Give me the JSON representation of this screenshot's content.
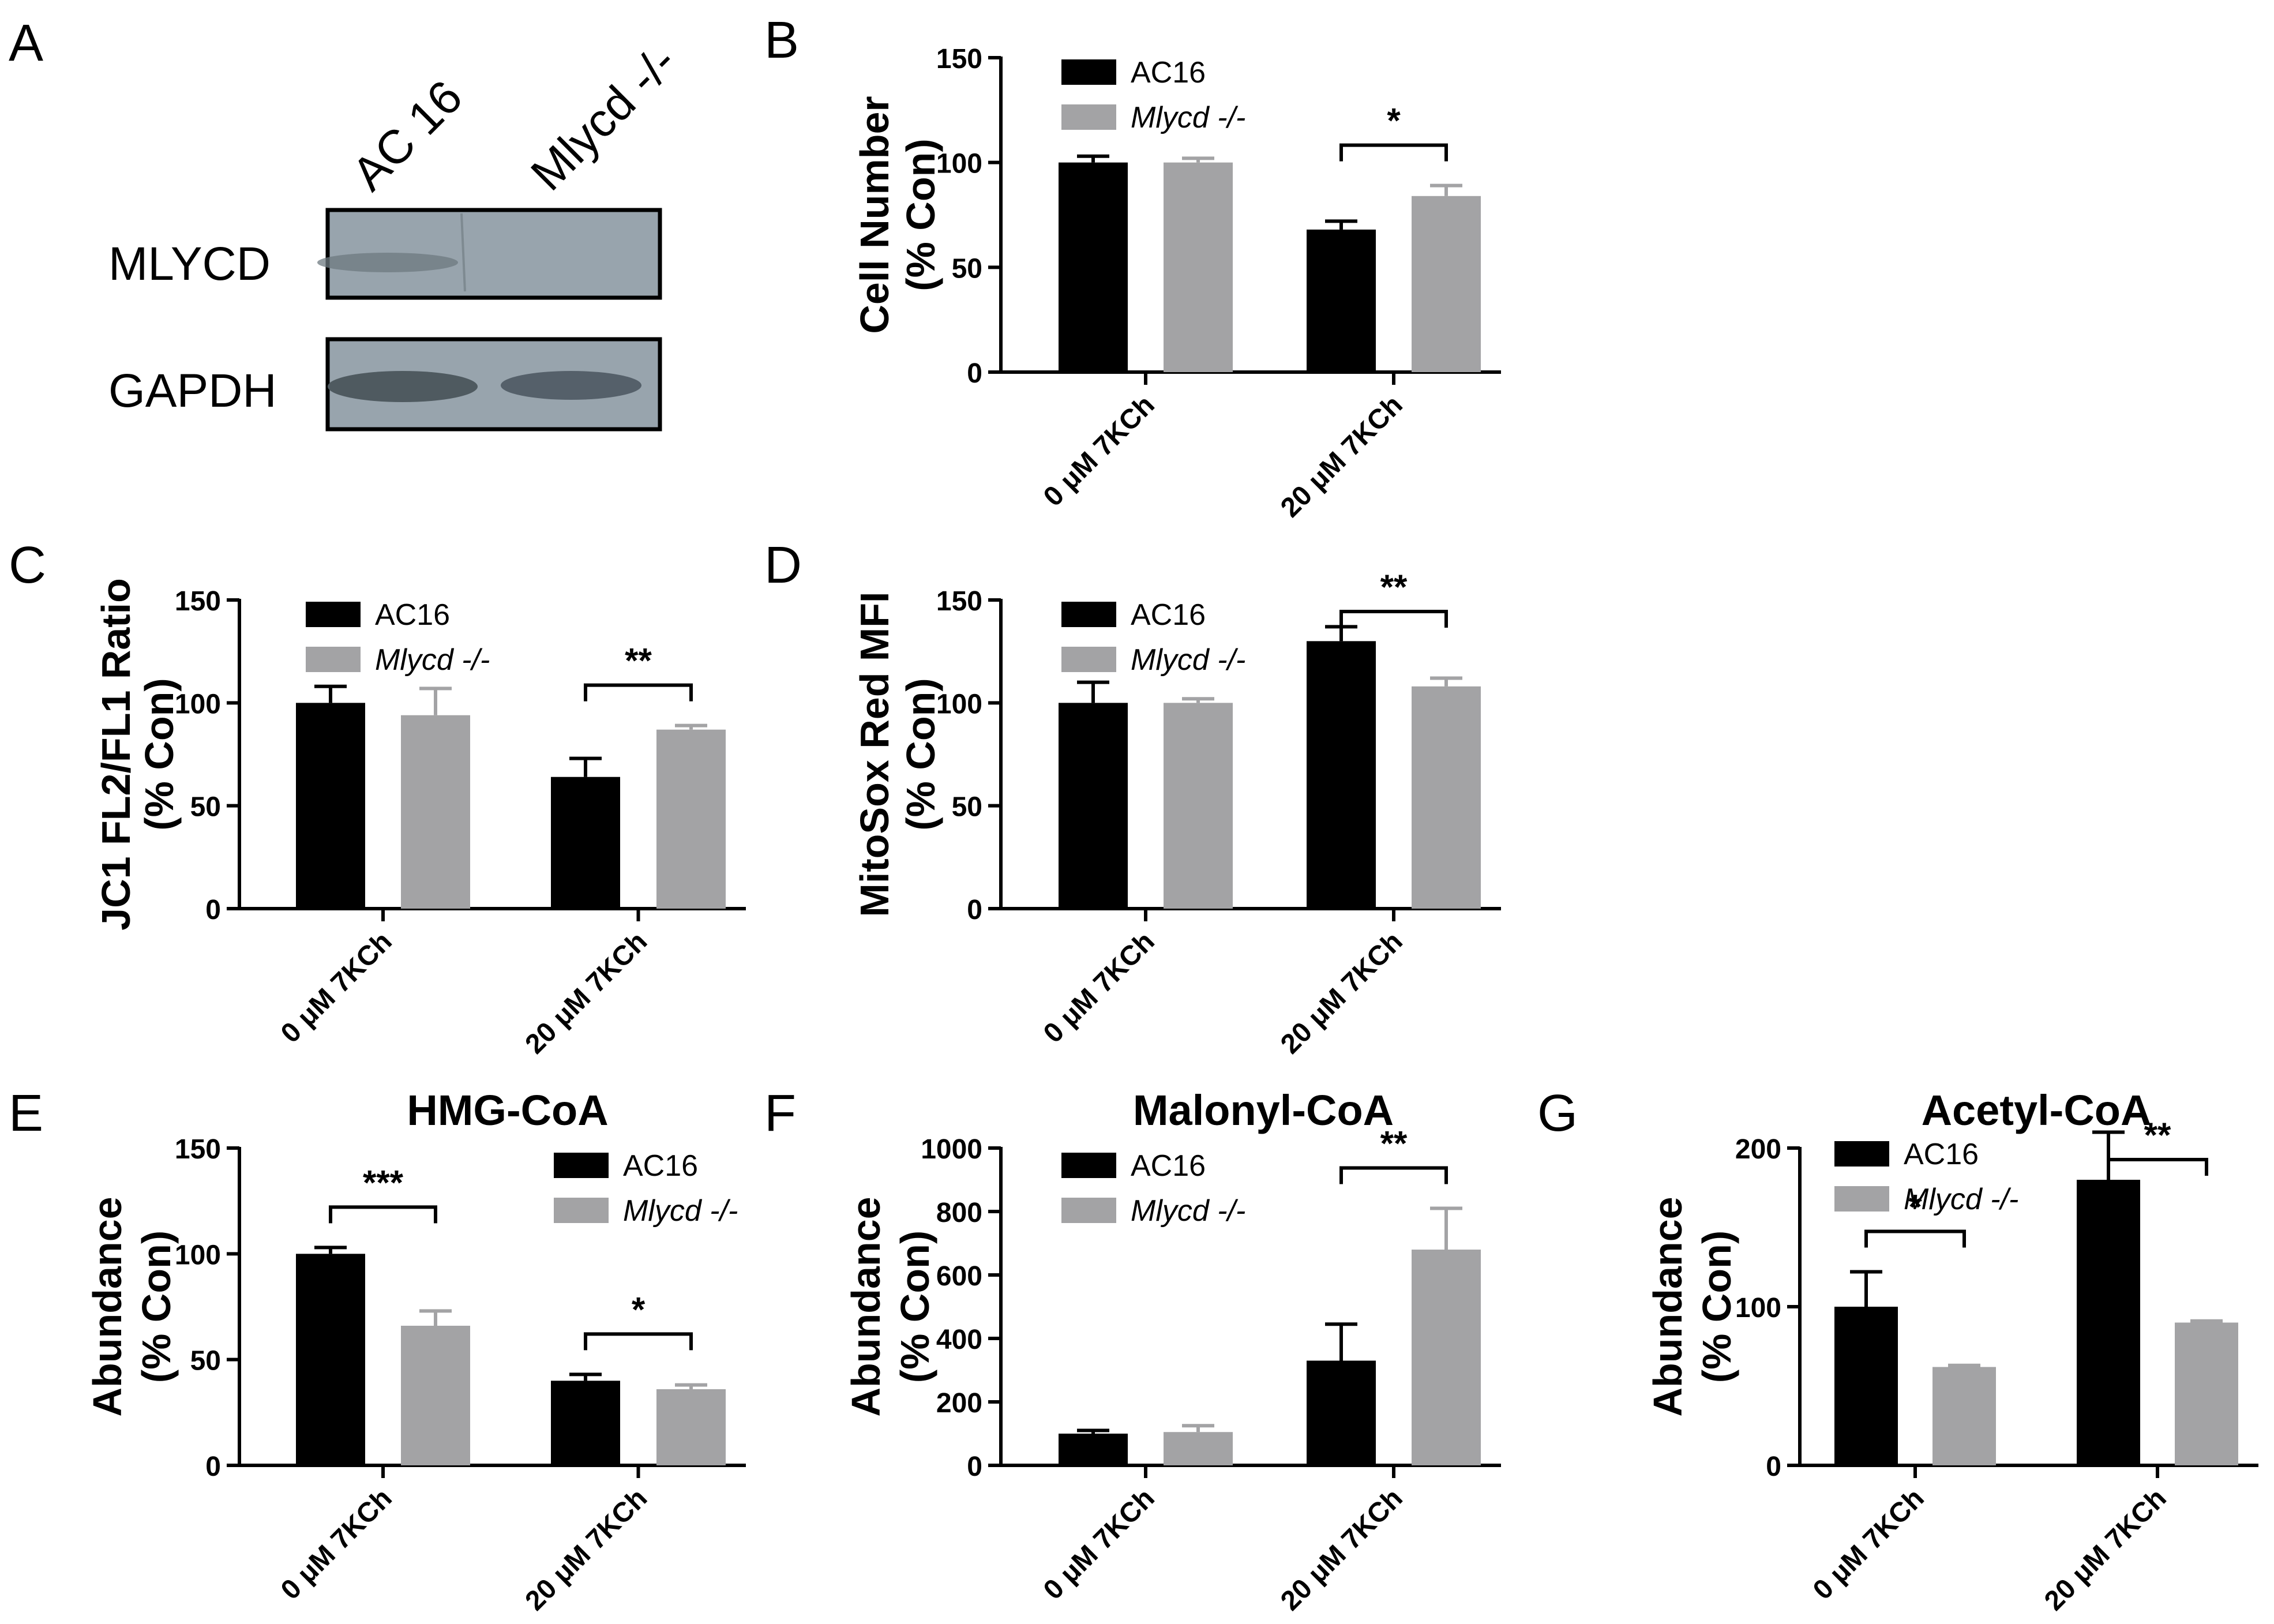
{
  "colors": {
    "ac16": "#000000",
    "mlycd": "#a3a3a5",
    "blot_background": "#98a4ad",
    "blot_band": "#4f5a60",
    "axis": "#000000"
  },
  "panel_a": {
    "letter": "A",
    "lane_labels": [
      "AC 16",
      "Mlycd -/-"
    ],
    "row_labels": [
      "MLYCD",
      "GAPDH"
    ]
  },
  "chart_data": [
    {
      "panel": "B",
      "type": "bar",
      "title": "",
      "ylabel": [
        "Cell Number",
        "(% Con)"
      ],
      "categories": [
        "0 μM 7KCh",
        "20 μM 7KCh"
      ],
      "ylim": [
        0,
        150
      ],
      "yticks": [
        "0",
        "50",
        "100",
        "150"
      ],
      "legend_position": "top-left",
      "series": [
        {
          "name": "AC16",
          "italic": false,
          "values": [
            100,
            68
          ],
          "errors": [
            3,
            4
          ]
        },
        {
          "name": "Mlycd -/-",
          "italic": true,
          "values": [
            100,
            84
          ],
          "errors": [
            2,
            5
          ]
        }
      ],
      "significance": [
        {
          "category": "20 μM 7KCh",
          "label": "*"
        }
      ]
    },
    {
      "panel": "C",
      "type": "bar",
      "title": "",
      "ylabel": [
        "JC1 FL2/FL1 Ratio",
        "(% Con)"
      ],
      "categories": [
        "0 μM 7KCh",
        "20 μM 7KCh"
      ],
      "ylim": [
        0,
        150
      ],
      "yticks": [
        "0",
        "50",
        "100",
        "150"
      ],
      "legend_position": "top-left",
      "series": [
        {
          "name": "AC16",
          "italic": false,
          "values": [
            100,
            64
          ],
          "errors": [
            8,
            9
          ]
        },
        {
          "name": "Mlycd -/-",
          "italic": true,
          "values": [
            94,
            87
          ],
          "errors": [
            13,
            2
          ]
        }
      ],
      "significance": [
        {
          "category": "20 μM 7KCh",
          "label": "**"
        }
      ]
    },
    {
      "panel": "D",
      "type": "bar",
      "title": "",
      "ylabel": [
        "MitoSox Red MFI",
        "(% Con)"
      ],
      "categories": [
        "0 μM 7KCh",
        "20 μM 7KCh"
      ],
      "ylim": [
        0,
        150
      ],
      "yticks": [
        "0",
        "50",
        "100",
        "150"
      ],
      "legend_position": "top-left",
      "series": [
        {
          "name": "AC16",
          "italic": false,
          "values": [
            100,
            130
          ],
          "errors": [
            10,
            7
          ]
        },
        {
          "name": "Mlycd -/-",
          "italic": true,
          "values": [
            100,
            108
          ],
          "errors": [
            2,
            4
          ]
        }
      ],
      "significance": [
        {
          "category": "20 μM 7KCh",
          "label": "**"
        }
      ]
    },
    {
      "panel": "E",
      "type": "bar",
      "title": "HMG-CoA",
      "ylabel": [
        "Abundance",
        "(% Con)"
      ],
      "categories": [
        "0 μM 7KCh",
        "20 μM 7KCh"
      ],
      "ylim": [
        0,
        150
      ],
      "yticks": [
        "0",
        "50",
        "100",
        "150"
      ],
      "legend_position": "top-right",
      "series": [
        {
          "name": "AC16",
          "italic": false,
          "values": [
            100,
            40
          ],
          "errors": [
            3,
            3
          ]
        },
        {
          "name": "Mlycd -/-",
          "italic": true,
          "values": [
            66,
            36
          ],
          "errors": [
            7,
            2
          ]
        }
      ],
      "significance": [
        {
          "category": "0 μM 7KCh",
          "label": "***"
        },
        {
          "category": "20 μM 7KCh",
          "label": "*"
        }
      ]
    },
    {
      "panel": "F",
      "type": "bar",
      "title": "Malonyl-CoA",
      "ylabel": [
        "Abundance",
        "(% Con)"
      ],
      "categories": [
        "0 μM 7KCh",
        "20 μM 7KCh"
      ],
      "ylim": [
        0,
        1000
      ],
      "yticks": [
        "0",
        "200",
        "400",
        "600",
        "800",
        "1000"
      ],
      "legend_position": "top-left",
      "series": [
        {
          "name": "AC16",
          "italic": false,
          "values": [
            100,
            330
          ],
          "errors": [
            10,
            115
          ]
        },
        {
          "name": "Mlycd -/-",
          "italic": true,
          "values": [
            105,
            680
          ],
          "errors": [
            20,
            130
          ]
        }
      ],
      "significance": [
        {
          "category": "20 μM 7KCh",
          "label": "**"
        }
      ]
    },
    {
      "panel": "G",
      "type": "bar",
      "title": "Acetyl-CoA",
      "ylabel": [
        "Abundance",
        "(% Con)"
      ],
      "categories": [
        "0 μM 7KCh",
        "20 μM 7KCh"
      ],
      "ylim": [
        0,
        250
      ],
      "yticks": [
        "0",
        "100",
        "200"
      ],
      "legend_position": "top-left",
      "series": [
        {
          "name": "AC16",
          "italic": false,
          "values": [
            100,
            180
          ],
          "errors": [
            22,
            30
          ]
        },
        {
          "name": "Mlycd -/-",
          "italic": true,
          "values": [
            62,
            90
          ],
          "errors": [
            1,
            1
          ]
        }
      ],
      "significance": [
        {
          "category": "0 μM 7KCh",
          "label": "*"
        },
        {
          "category": "20 μM 7KCh",
          "label": "**"
        }
      ]
    }
  ]
}
